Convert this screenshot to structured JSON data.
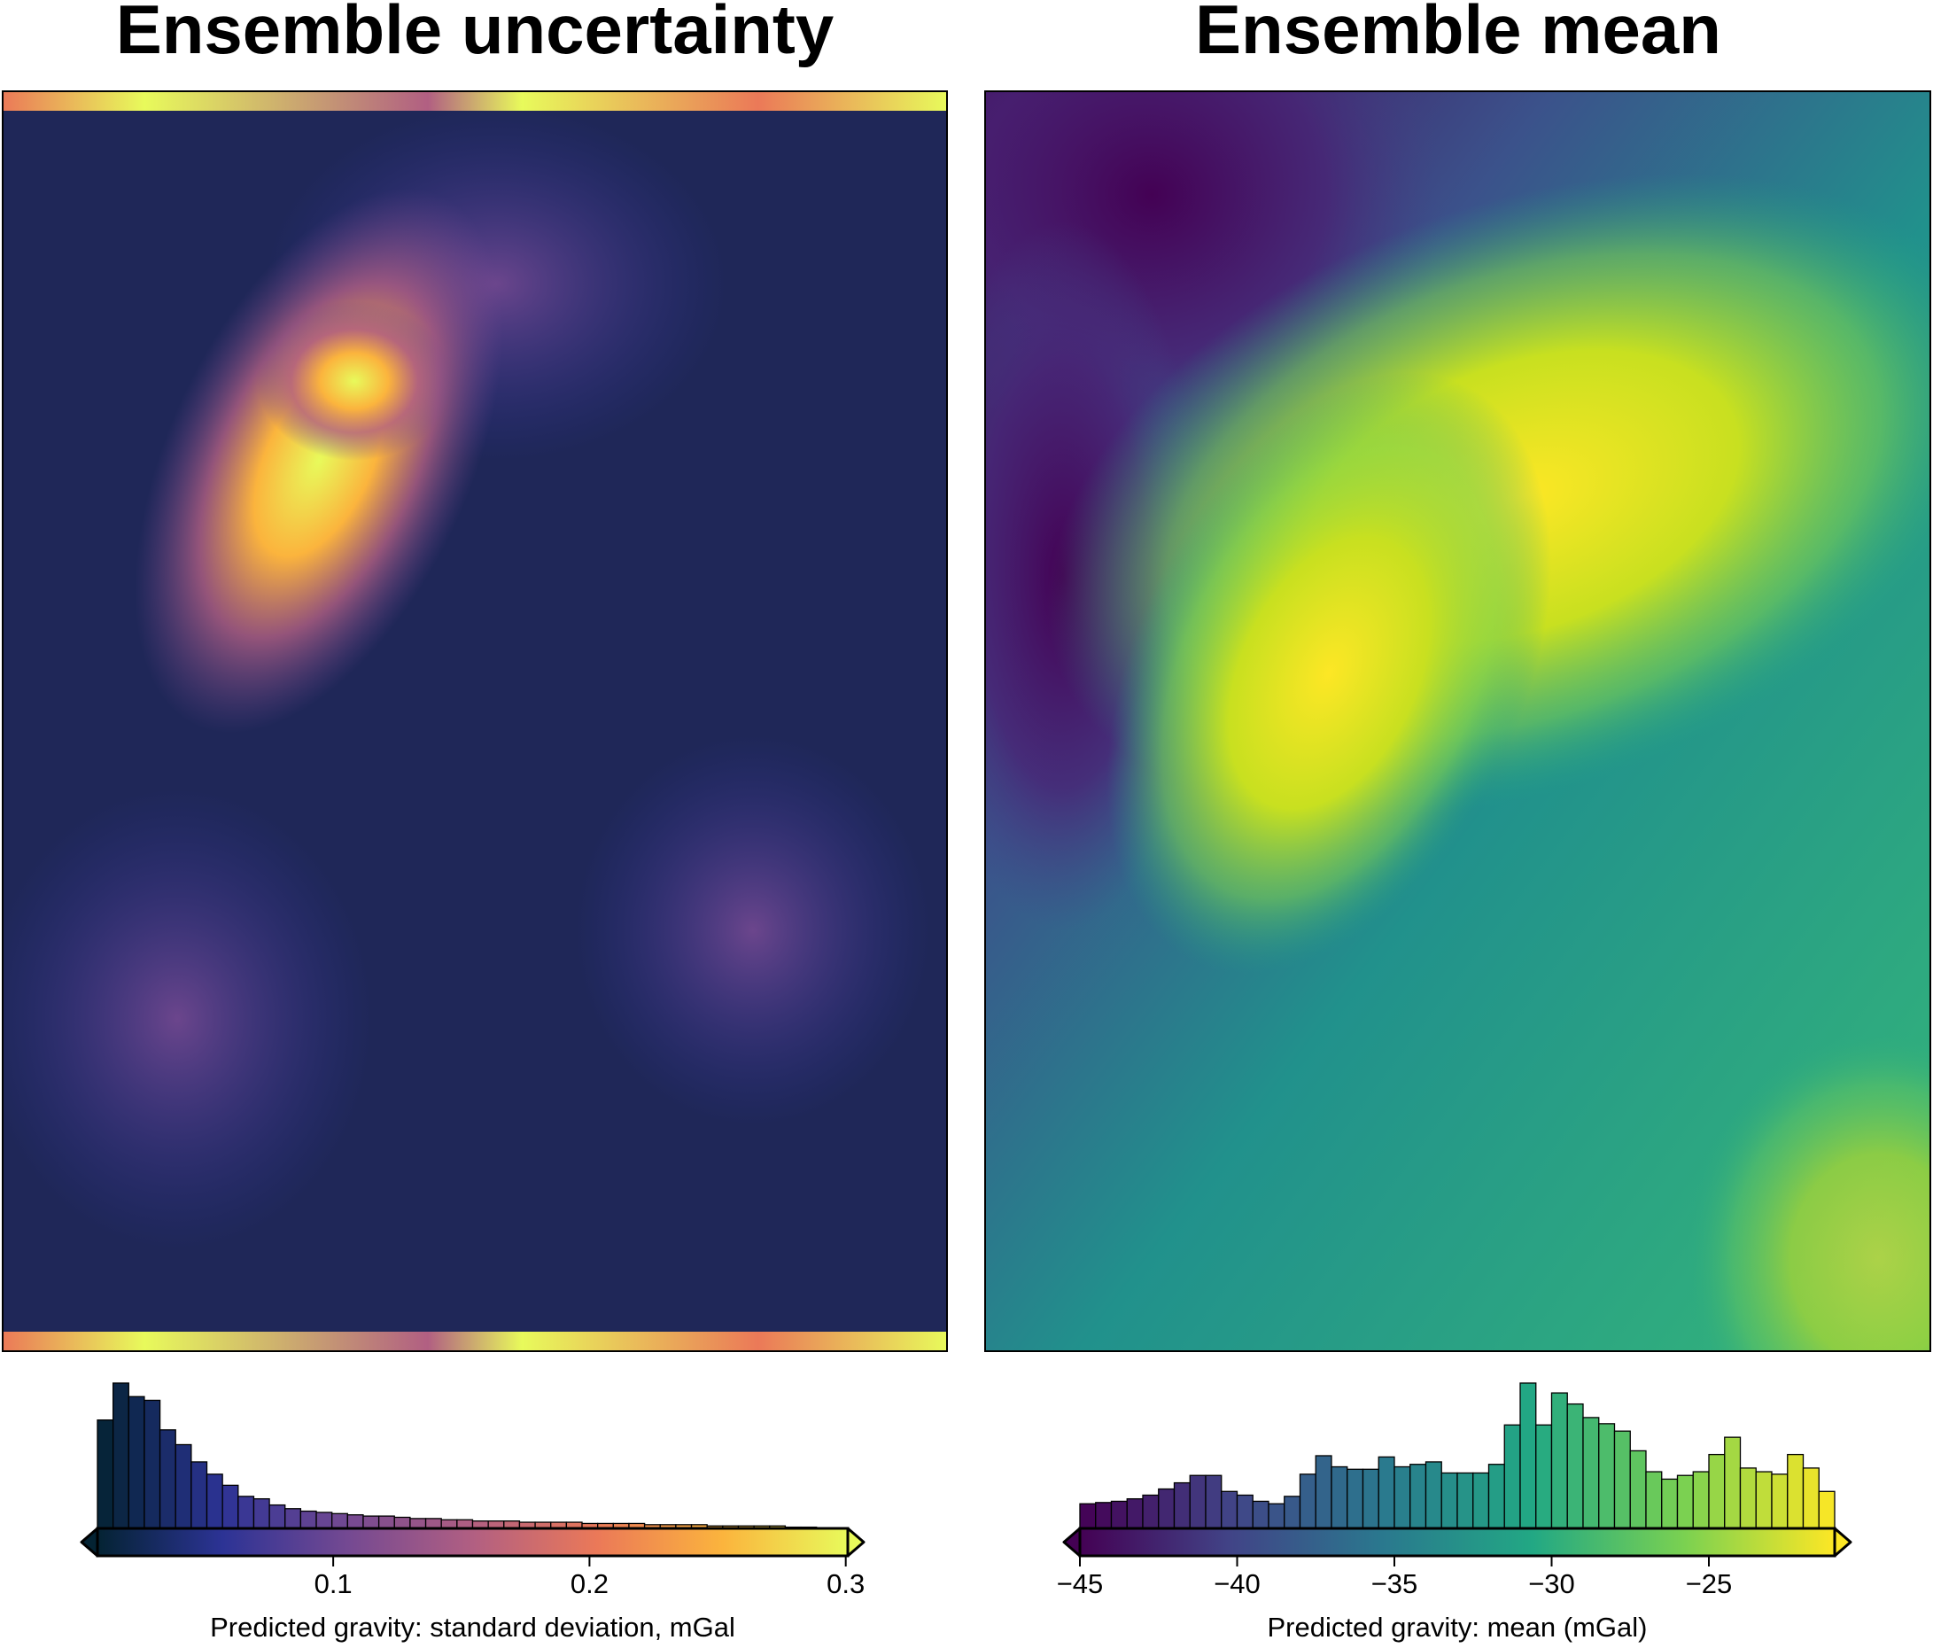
{
  "chart_data": [
    {
      "type": "histogram",
      "title": "Ensemble uncertainty",
      "xlabel": "Predicted gravity:  standard deviation, mGal",
      "xlim": [
        0.008,
        0.3008
      ],
      "xticks": [
        0.1,
        0.2,
        0.3
      ],
      "colormap": [
        "#042333",
        "#2c3395",
        "#744992",
        "#b15f82",
        "#eb7958",
        "#fbb43d",
        "#e8fa5b"
      ],
      "bins": [
        0.008,
        0.0141,
        0.0202,
        0.0263,
        0.0324,
        0.0385,
        0.0446,
        0.0507,
        0.0568,
        0.0629,
        0.069,
        0.0751,
        0.0812,
        0.0873,
        0.0934,
        0.0995,
        0.1056,
        0.1117,
        0.1178,
        0.1239,
        0.13,
        0.1361,
        0.1422,
        0.1483,
        0.1544,
        0.1605,
        0.1666,
        0.1727,
        0.1788,
        0.1849,
        0.191,
        0.1971,
        0.2032,
        0.2093,
        0.2154,
        0.2215,
        0.2276,
        0.2337,
        0.2398,
        0.2459,
        0.252,
        0.2581,
        0.2642,
        0.2703,
        0.2764,
        0.2825,
        0.2886,
        0.2947,
        0.3008
      ],
      "values": [
        88,
        118,
        107,
        104,
        80,
        68,
        54,
        44,
        35,
        26,
        24,
        19,
        16,
        14,
        13,
        12,
        11,
        10,
        10,
        9,
        8,
        8,
        7,
        7,
        6,
        6,
        6,
        5,
        5,
        5,
        5,
        4,
        4,
        4,
        4,
        3,
        3,
        3,
        3,
        2,
        2,
        2,
        2,
        2,
        1,
        1,
        0,
        0
      ]
    },
    {
      "type": "histogram",
      "title": "Ensemble mean",
      "xlabel": "Predicted gravity:  mean (mGal)",
      "xlim": [
        -45,
        -21
      ],
      "xticks": [
        {
          "value": -45,
          "label": "−45"
        },
        {
          "value": -40,
          "label": "−40"
        },
        {
          "value": -35,
          "label": "−35"
        },
        {
          "value": -30,
          "label": "−30"
        },
        {
          "value": -25,
          "label": "−25"
        }
      ],
      "colormap": [
        "#440154",
        "#414487",
        "#2a788e",
        "#22a884",
        "#7ad151",
        "#fde725"
      ],
      "bins": [
        -45,
        -44.5,
        -44,
        -43.5,
        -43,
        -42.5,
        -42,
        -41.5,
        -41,
        -40.5,
        -40,
        -39.5,
        -39,
        -38.5,
        -38,
        -37.5,
        -37,
        -36.5,
        -36,
        -35.5,
        -35,
        -34.5,
        -34,
        -33.5,
        -33,
        -32.5,
        -32,
        -31.5,
        -31,
        -30.5,
        -30,
        -29.5,
        -29,
        -28.5,
        -28,
        -27.5,
        -27,
        -26.5,
        -26,
        -25.5,
        -25,
        -24.5,
        -24,
        -23.5,
        -23,
        -22.5,
        -22,
        -21.5,
        -21
      ],
      "values": [
        20,
        21,
        22,
        24,
        27,
        32,
        37,
        43,
        43,
        30,
        27,
        22,
        20,
        26,
        44,
        59,
        50,
        48,
        48,
        58,
        50,
        52,
        54,
        45,
        45,
        45,
        52,
        84,
        118,
        84,
        110,
        101,
        90,
        85,
        79,
        63,
        46,
        40,
        43,
        46,
        60,
        74,
        49,
        46,
        44,
        60,
        49,
        30
      ]
    }
  ]
}
